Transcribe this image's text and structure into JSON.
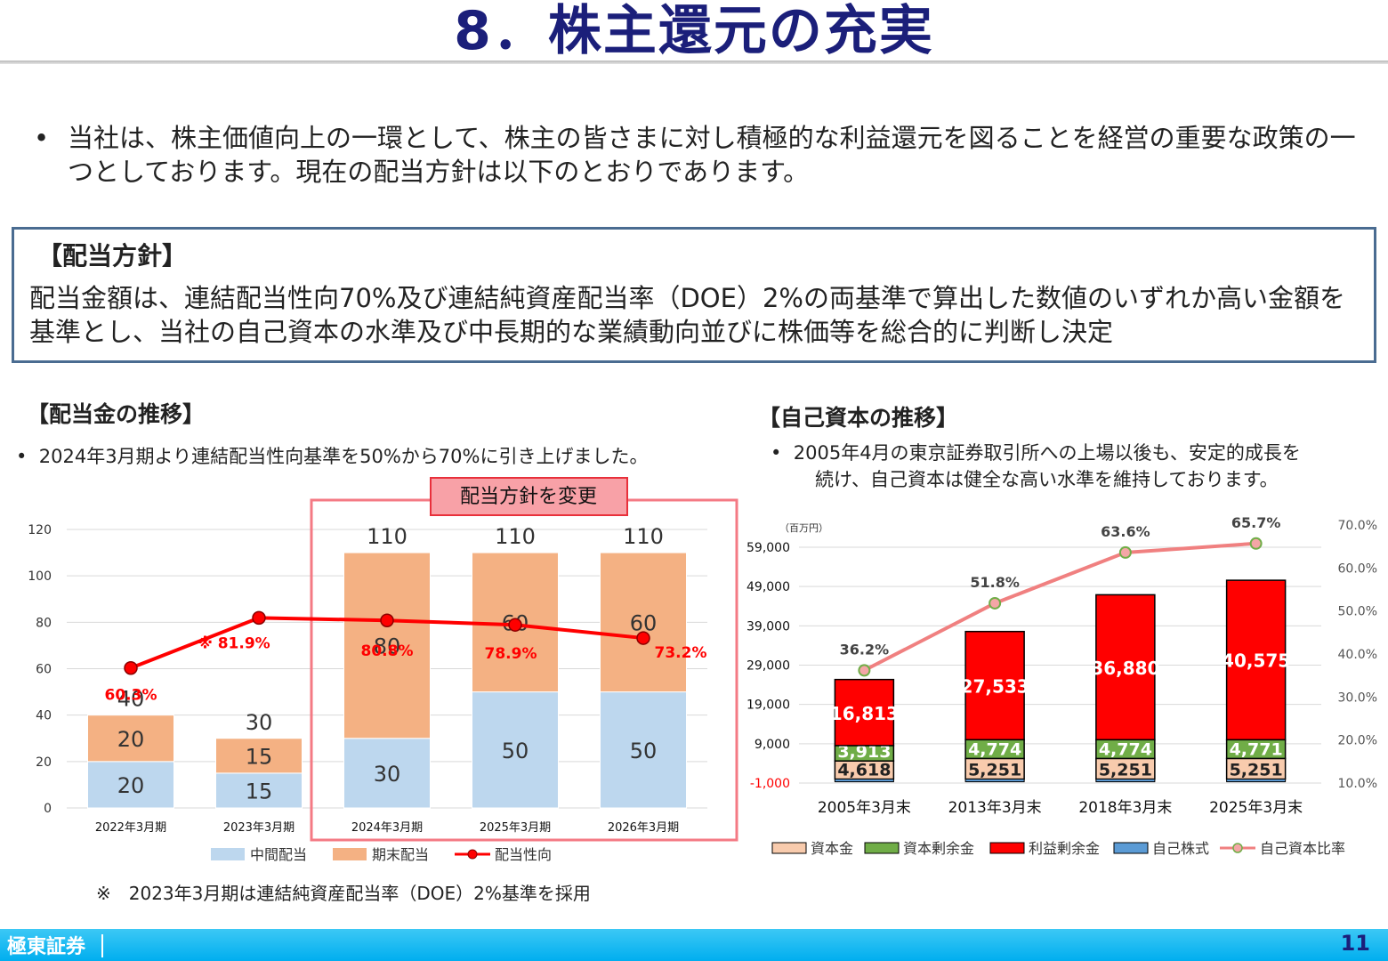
{
  "page": {
    "title": "8．株主還元の充実",
    "intro_bullet": "•",
    "intro": "当社は、株主価値向上の一環として、株主の皆さまに対し積極的な利益還元を図ることを経営の重要な政策の一つとしております。現在の配当方針は以下のとおりであります。",
    "footer_logo": "極東証券",
    "page_number": "11"
  },
  "policy": {
    "title": "【配当方針】",
    "body": "配当金額は、連結配当性向70%及び連結純資産配当率（DOE）2%の両基準で算出した数値のいずれか高い金額を基準とし、当社の自己資本の水準及び中長期的な業績動向並びに株価等を総合的に判断し決定"
  },
  "dividend_section": {
    "title": "【配当金の推移】",
    "bullet": "•",
    "note": "2024年3月期より連結配当性向基準を50%から70%に引き上げました。",
    "policy_change_label": "配当方針を変更",
    "footnote": "※　2023年3月期は連結純資産配当率（DOE）2%基準を採用"
  },
  "equity_section": {
    "title": "【自己資本の推移】",
    "bullet": "•",
    "note_line1": "2005年4月の東京証券取引所への上場以後も、安定的成長を",
    "note_line2": "続け、自己資本は健全な高い水準を維持しております。"
  },
  "chart_data": [
    {
      "type": "bar",
      "stacked": true,
      "categories": [
        "2022年3月期",
        "2023年3月期",
        "2024年3月期",
        "2025年3月期",
        "2026年3月期"
      ],
      "series": [
        {
          "name": "中間配当",
          "values": [
            20,
            15,
            30,
            50,
            50
          ],
          "color": "#bdd7ee"
        },
        {
          "name": "期末配当",
          "values": [
            20,
            15,
            80,
            60,
            60
          ],
          "color": "#f4b183"
        }
      ],
      "totals": [
        40,
        30,
        110,
        110,
        110
      ],
      "line_series": {
        "name": "配当性向",
        "values": [
          60.3,
          81.9,
          80.8,
          78.9,
          73.2
        ],
        "labels": [
          "60.3%",
          "※ 81.9%",
          "80.8%",
          "78.9%",
          "73.2%"
        ],
        "color": "#ff0000"
      },
      "ylim": [
        0,
        120
      ],
      "yticks": [
        0,
        20,
        40,
        60,
        80,
        100,
        120
      ],
      "y2lim": [
        0,
        120
      ],
      "legend": "bottom",
      "highlight_categories": [
        "2024年3月期",
        "2025年3月期",
        "2026年3月期"
      ],
      "grid": true
    },
    {
      "type": "bar",
      "stacked": true,
      "unit": "（百万円）",
      "categories": [
        "2005年3月末",
        "2013年3月末",
        "2018年3月末",
        "2025年3月末"
      ],
      "series": [
        {
          "name": "資本金",
          "values": [
            4618,
            5251,
            5251,
            5251
          ],
          "color": "#f8cbad"
        },
        {
          "name": "資本剰余金",
          "values": [
            3913,
            4774,
            4774,
            4771
          ],
          "color": "#70ad47"
        },
        {
          "name": "利益剰余金",
          "values": [
            16813,
            27533,
            36880,
            40575
          ],
          "color": "#ff0000"
        },
        {
          "name": "自己株式",
          "values": [
            -400,
            -600,
            -600,
            -600
          ],
          "color": "#5b9bd5"
        }
      ],
      "line_series": {
        "name": "自己資本比率",
        "values": [
          36.2,
          51.8,
          63.6,
          65.7
        ],
        "labels": [
          "36.2%",
          "51.8%",
          "63.6%",
          "65.7%"
        ],
        "color": "#f08080"
      },
      "ylim": [
        -1000,
        59000
      ],
      "yticks": [
        -1000,
        9000,
        19000,
        29000,
        39000,
        49000,
        59000
      ],
      "ytick_labels": [
        "-1,000",
        "9,000",
        "19,000",
        "29,000",
        "39,000",
        "49,000",
        "59,000"
      ],
      "y2lim": [
        10,
        70
      ],
      "y2ticks": [
        10,
        20,
        30,
        40,
        50,
        60,
        70
      ],
      "y2tick_labels": [
        "10.0%",
        "20.0%",
        "30.0%",
        "40.0%",
        "50.0%",
        "60.0%",
        "70.0%"
      ],
      "legend": "bottom",
      "grid": true
    }
  ]
}
